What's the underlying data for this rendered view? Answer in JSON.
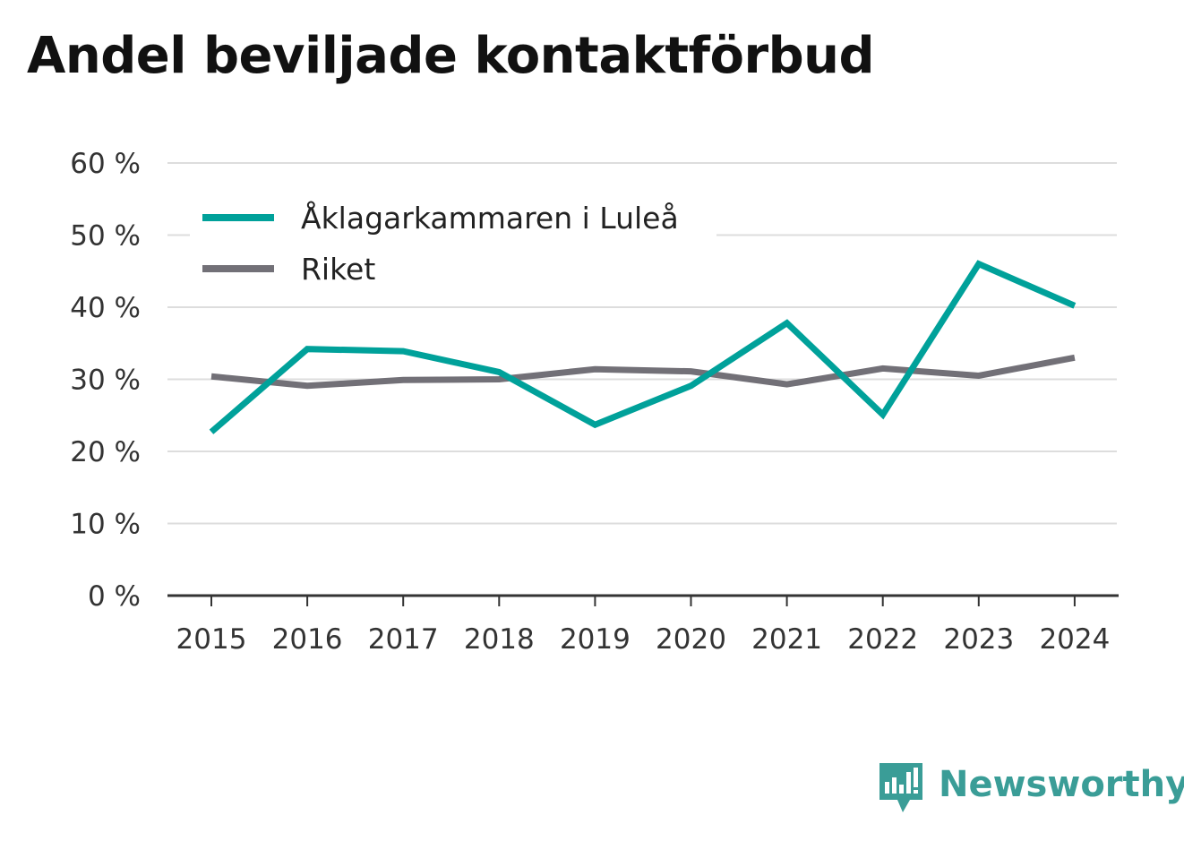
{
  "title": "Andel beviljade kontaktförbud",
  "chart_data": {
    "type": "line",
    "title": "Andel beviljade kontaktförbud",
    "x": [
      "2015",
      "2016",
      "2017",
      "2018",
      "2019",
      "2020",
      "2021",
      "2022",
      "2023",
      "2024"
    ],
    "y_ticks": [
      "0 %",
      "10 %",
      "20 %",
      "30 %",
      "40 %",
      "50 %",
      "60 %"
    ],
    "ylim": [
      0,
      60
    ],
    "y_unit": "%",
    "grid": true,
    "legend_position": "top-left",
    "series": [
      {
        "name": "Åklagarkammaren i Luleå",
        "color": "#00a19a",
        "values": [
          22.7,
          34.2,
          33.9,
          31.0,
          23.7,
          29.1,
          37.8,
          25.1,
          46.0,
          40.2
        ]
      },
      {
        "name": "Riket",
        "color": "#727077",
        "values": [
          30.4,
          29.1,
          29.9,
          30.0,
          31.4,
          31.1,
          29.3,
          31.5,
          30.5,
          33.0
        ]
      }
    ]
  },
  "brand": {
    "name": "Newsworthy",
    "color": "#3a9d97",
    "icon": "newsworthy-logo-icon"
  }
}
